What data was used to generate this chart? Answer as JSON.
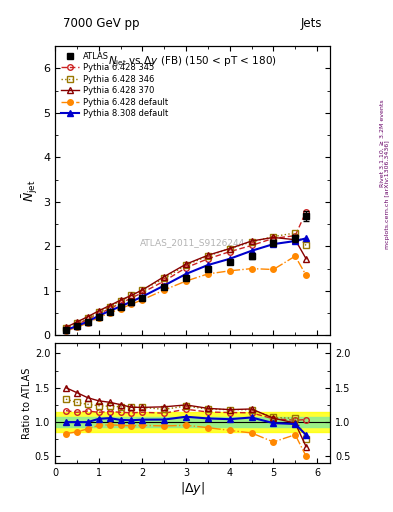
{
  "title": "$N_{\\mathrm{jet}}$ vs $\\Delta y$ (FB) (150 < pT < 180)",
  "header_left": "7000 GeV pp",
  "header_right": "Jets",
  "ylabel_main": "$\\bar{N}_{\\mathrm{jet}}$",
  "ylabel_ratio": "Ratio to ATLAS",
  "xlabel": "$|\\Delta y|$",
  "watermark": "ATLAS_2011_S9126244",
  "right_label": "Rivet 3.1.10, ≥ 3.2M events",
  "right_label2": "mcplots.cern.ch [arXiv:1306.3436]",
  "x": [
    0.25,
    0.5,
    0.75,
    1.0,
    1.25,
    1.5,
    1.75,
    2.0,
    2.5,
    3.0,
    3.5,
    4.0,
    4.5,
    5.0,
    5.5,
    5.75
  ],
  "atlas_y": [
    0.12,
    0.21,
    0.31,
    0.42,
    0.52,
    0.63,
    0.74,
    0.84,
    1.08,
    1.28,
    1.5,
    1.65,
    1.78,
    2.08,
    2.18,
    2.68
  ],
  "atlas_yerr": [
    0.01,
    0.01,
    0.01,
    0.01,
    0.01,
    0.02,
    0.02,
    0.02,
    0.03,
    0.03,
    0.04,
    0.05,
    0.06,
    0.07,
    0.08,
    0.12
  ],
  "p345_y": [
    0.14,
    0.24,
    0.36,
    0.48,
    0.6,
    0.72,
    0.84,
    0.96,
    1.22,
    1.52,
    1.72,
    1.88,
    2.02,
    2.18,
    2.24,
    2.78
  ],
  "p346_y": [
    0.16,
    0.27,
    0.39,
    0.52,
    0.64,
    0.77,
    0.9,
    1.02,
    1.28,
    1.58,
    1.78,
    1.95,
    2.1,
    2.22,
    2.3,
    2.02
  ],
  "p370_y": [
    0.18,
    0.3,
    0.42,
    0.55,
    0.67,
    0.79,
    0.9,
    1.02,
    1.32,
    1.6,
    1.8,
    1.95,
    2.12,
    2.2,
    2.15,
    1.72
  ],
  "pdef_y": [
    0.1,
    0.18,
    0.28,
    0.4,
    0.5,
    0.6,
    0.7,
    0.8,
    1.02,
    1.22,
    1.38,
    1.45,
    1.5,
    1.48,
    1.78,
    1.35
  ],
  "p8_y": [
    0.12,
    0.21,
    0.31,
    0.44,
    0.55,
    0.65,
    0.76,
    0.87,
    1.12,
    1.38,
    1.58,
    1.72,
    1.9,
    2.05,
    2.12,
    2.18
  ],
  "atlas_band_yellow": 0.15,
  "atlas_band_green": 0.07,
  "color_atlas": "#000000",
  "color_p345": "#cc2222",
  "color_p346": "#997700",
  "color_p370": "#880000",
  "color_pdef": "#ff8800",
  "color_p8": "#0000cc"
}
